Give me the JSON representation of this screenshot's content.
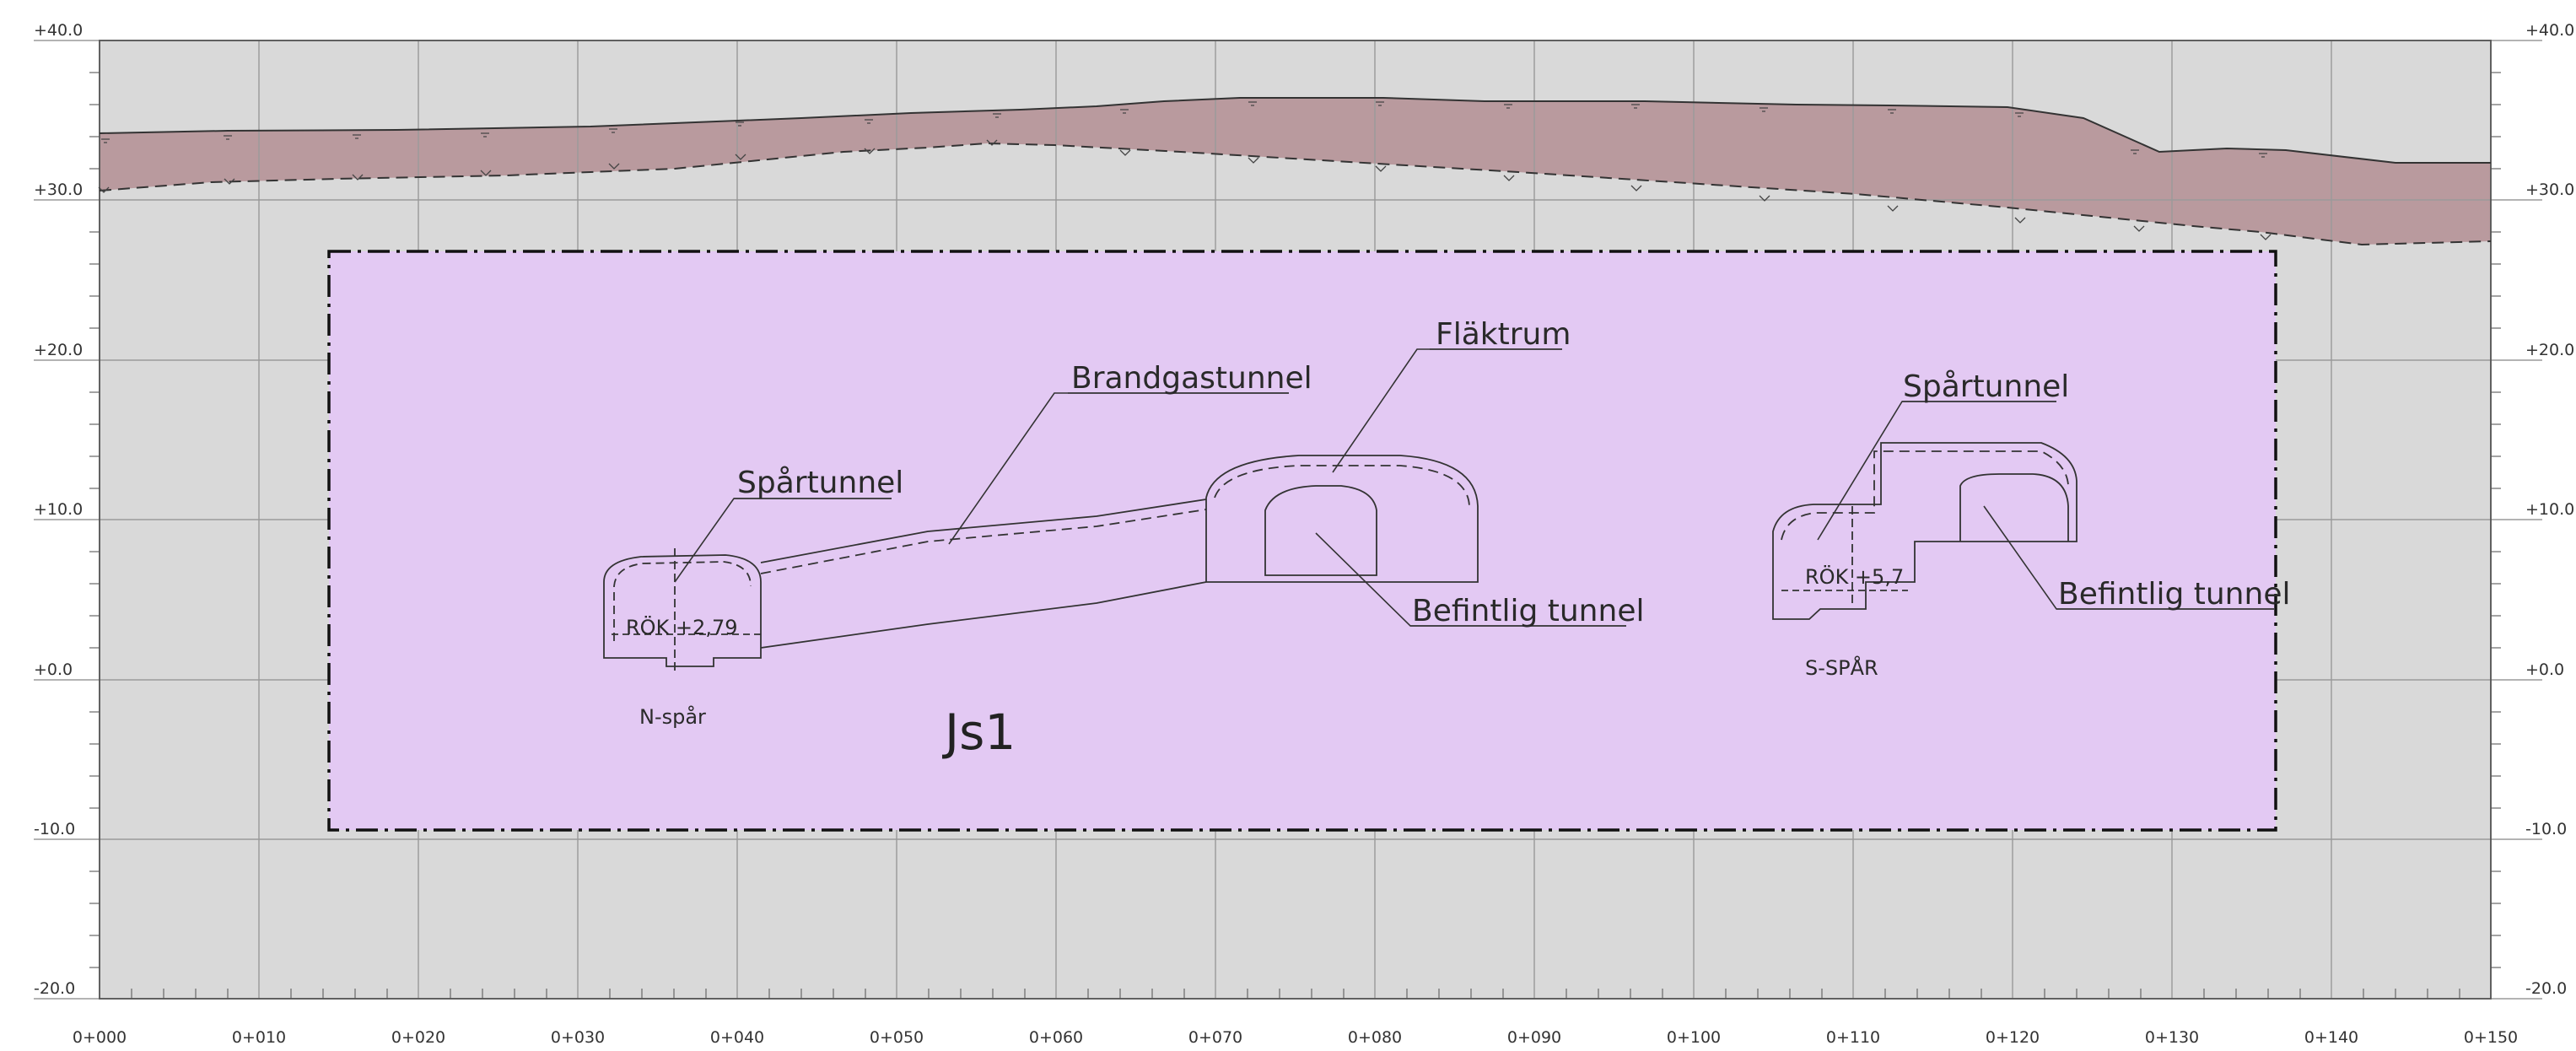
{
  "colors": {
    "background": "#ffffff",
    "rock": "#d9d9d9",
    "soil": "#b99a9e",
    "zone_fill": "#e3c9f3",
    "grid": "#9a9a9a",
    "line": "#333333"
  },
  "elevation_axis": {
    "labels": [
      "+40.0",
      "+30.0",
      "+20.0",
      "+10.0",
      "+0.0",
      "-10.0",
      "-20.0"
    ]
  },
  "chainage_axis": {
    "labels": [
      "0+000",
      "0+010",
      "0+020",
      "0+030",
      "0+040",
      "0+050",
      "0+060",
      "0+070",
      "0+080",
      "0+090",
      "0+100",
      "0+110",
      "0+120",
      "0+130",
      "0+140",
      "0+150"
    ]
  },
  "callouts": {
    "spartunnel_n": "Spårtunnel",
    "brandgastunnel": "Brandgastunnel",
    "flaktrum": "Fläktrum",
    "spartunnel_s": "Spårtunnel",
    "befintlig_1": "Befintlig tunnel",
    "befintlig_2": "Befintlig tunnel"
  },
  "labels": {
    "rok_n": "RÖK +2,79",
    "rok_s": "RÖK +5,7",
    "n_spar": "N-spår",
    "s_spar": "S-SPÅR",
    "zone": "Js1"
  }
}
